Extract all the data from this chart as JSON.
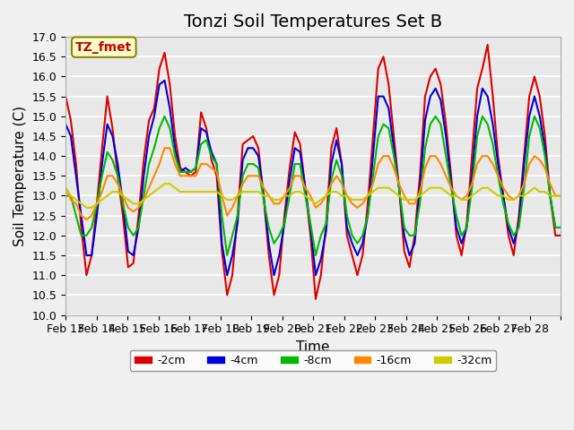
{
  "title": "Tonzi Soil Temperatures Set B",
  "xlabel": "Time",
  "ylabel": "Soil Temperature (C)",
  "ylim": [
    10.0,
    17.0
  ],
  "yticks": [
    10.0,
    10.5,
    11.0,
    11.5,
    12.0,
    12.5,
    13.0,
    13.5,
    14.0,
    14.5,
    15.0,
    15.5,
    16.0,
    16.5,
    17.0
  ],
  "xtick_labels": [
    "Feb 13",
    "Feb 14",
    "Feb 15",
    "Feb 16",
    "Feb 17",
    "Feb 18",
    "Feb 19",
    "Feb 20",
    "Feb 21",
    "Feb 22",
    "Feb 23",
    "Feb 24",
    "Feb 25",
    "Feb 26",
    "Feb 27",
    "Feb 28"
  ],
  "series": {
    "-2cm": {
      "color": "#dd0000",
      "linewidth": 1.5
    },
    "-4cm": {
      "color": "#0000dd",
      "linewidth": 1.5
    },
    "-8cm": {
      "color": "#00bb00",
      "linewidth": 1.5
    },
    "-16cm": {
      "color": "#ff8800",
      "linewidth": 1.5
    },
    "-32cm": {
      "color": "#cccc00",
      "linewidth": 1.5
    }
  },
  "legend_label": "TZ_fmet",
  "legend_bg": "#ffffcc",
  "legend_border": "#888800",
  "bg_color": "#e8e8e8",
  "grid_color": "#ffffff",
  "title_fontsize": 14,
  "axis_label_fontsize": 11,
  "tick_fontsize": 9,
  "n_points": 384,
  "days": 16,
  "t2cm": [
    15.5,
    14.9,
    13.8,
    12.2,
    11.0,
    11.5,
    12.8,
    14.2,
    15.5,
    14.7,
    13.5,
    12.5,
    11.2,
    11.3,
    12.5,
    13.9,
    14.9,
    15.2,
    16.2,
    16.6,
    15.8,
    14.5,
    13.7,
    13.6,
    13.5,
    13.6,
    15.1,
    14.7,
    13.9,
    13.5,
    11.6,
    10.5,
    11.0,
    12.5,
    14.3,
    14.4,
    14.5,
    14.2,
    13.0,
    11.5,
    10.5,
    11.0,
    12.5,
    13.7,
    14.6,
    14.3,
    13.2,
    12.0,
    10.4,
    11.0,
    12.3,
    14.2,
    14.7,
    13.8,
    12.0,
    11.5,
    11.0,
    11.5,
    12.8,
    14.5,
    16.2,
    16.5,
    15.8,
    14.5,
    13.2,
    11.6,
    11.2,
    12.0,
    13.5,
    15.5,
    16.0,
    16.2,
    15.8,
    14.8,
    13.5,
    12.0,
    11.5,
    12.3,
    14.0,
    15.7,
    16.2,
    16.8,
    15.5,
    14.0,
    13.0,
    12.0,
    11.5,
    12.5,
    14.0,
    15.5,
    16.0,
    15.5,
    14.5,
    13.0,
    12.0,
    12.0
  ],
  "t4cm": [
    14.8,
    14.5,
    13.5,
    12.5,
    11.5,
    11.5,
    12.5,
    13.8,
    14.8,
    14.5,
    13.8,
    12.8,
    11.6,
    11.5,
    12.2,
    13.5,
    14.5,
    15.0,
    15.8,
    15.9,
    15.2,
    14.2,
    13.6,
    13.7,
    13.6,
    13.7,
    14.7,
    14.6,
    14.1,
    13.8,
    11.8,
    11.0,
    11.5,
    12.3,
    13.9,
    14.2,
    14.2,
    14.0,
    13.0,
    11.8,
    11.0,
    11.5,
    12.3,
    13.4,
    14.2,
    14.1,
    13.2,
    12.2,
    11.0,
    11.4,
    12.1,
    13.8,
    14.4,
    13.8,
    12.2,
    11.8,
    11.5,
    11.8,
    12.5,
    14.0,
    15.5,
    15.5,
    15.2,
    14.2,
    13.2,
    12.0,
    11.5,
    11.8,
    13.2,
    14.9,
    15.5,
    15.7,
    15.4,
    14.5,
    13.3,
    12.2,
    11.8,
    12.2,
    13.5,
    15.0,
    15.7,
    15.5,
    14.8,
    13.8,
    13.0,
    12.2,
    11.8,
    12.3,
    13.8,
    15.0,
    15.5,
    15.0,
    14.2,
    13.0,
    12.2,
    12.2
  ],
  "t8cm": [
    13.0,
    13.0,
    12.5,
    12.0,
    12.0,
    12.2,
    12.8,
    13.5,
    14.1,
    13.9,
    13.5,
    12.8,
    12.2,
    12.0,
    12.2,
    13.0,
    13.8,
    14.2,
    14.7,
    15.0,
    14.7,
    14.0,
    13.6,
    13.6,
    13.6,
    13.7,
    14.3,
    14.4,
    14.0,
    13.8,
    12.5,
    11.5,
    12.0,
    12.5,
    13.5,
    13.8,
    13.8,
    13.7,
    12.9,
    12.2,
    11.8,
    12.0,
    12.3,
    13.0,
    13.8,
    13.8,
    13.0,
    12.3,
    11.5,
    12.0,
    12.3,
    13.4,
    13.9,
    13.5,
    12.5,
    12.0,
    11.8,
    12.0,
    12.5,
    13.5,
    14.5,
    14.8,
    14.7,
    14.0,
    13.2,
    12.2,
    12.0,
    12.0,
    12.8,
    14.2,
    14.8,
    15.0,
    14.8,
    14.0,
    13.2,
    12.5,
    12.0,
    12.2,
    13.2,
    14.5,
    15.0,
    14.8,
    14.3,
    13.5,
    12.8,
    12.3,
    12.0,
    12.2,
    13.2,
    14.5,
    15.0,
    14.7,
    14.0,
    13.0,
    12.2,
    12.2
  ],
  "t16cm": [
    13.2,
    12.9,
    12.8,
    12.5,
    12.4,
    12.5,
    12.8,
    13.1,
    13.5,
    13.5,
    13.3,
    13.0,
    12.7,
    12.6,
    12.7,
    12.9,
    13.2,
    13.5,
    13.8,
    14.2,
    14.2,
    13.8,
    13.5,
    13.5,
    13.5,
    13.5,
    13.8,
    13.8,
    13.7,
    13.6,
    13.0,
    12.5,
    12.7,
    13.0,
    13.3,
    13.5,
    13.5,
    13.5,
    13.2,
    13.0,
    12.8,
    12.8,
    13.0,
    13.2,
    13.5,
    13.5,
    13.2,
    13.0,
    12.7,
    12.8,
    13.0,
    13.3,
    13.5,
    13.3,
    13.0,
    12.8,
    12.7,
    12.8,
    13.0,
    13.3,
    13.8,
    14.0,
    14.0,
    13.7,
    13.3,
    13.0,
    12.8,
    12.8,
    13.1,
    13.7,
    14.0,
    14.0,
    13.8,
    13.5,
    13.2,
    13.0,
    12.9,
    13.0,
    13.3,
    13.8,
    14.0,
    14.0,
    13.8,
    13.5,
    13.2,
    13.0,
    12.9,
    13.0,
    13.3,
    13.8,
    14.0,
    13.9,
    13.7,
    13.3,
    13.0,
    13.0
  ],
  "t32cm": [
    13.2,
    13.0,
    12.9,
    12.8,
    12.7,
    12.7,
    12.8,
    12.9,
    13.0,
    13.1,
    13.1,
    13.0,
    12.9,
    12.8,
    12.8,
    12.9,
    13.0,
    13.1,
    13.2,
    13.3,
    13.3,
    13.2,
    13.1,
    13.1,
    13.1,
    13.1,
    13.1,
    13.1,
    13.1,
    13.1,
    13.0,
    12.9,
    12.9,
    13.0,
    13.1,
    13.1,
    13.1,
    13.1,
    13.0,
    13.0,
    12.9,
    12.9,
    13.0,
    13.0,
    13.1,
    13.1,
    13.0,
    12.9,
    12.8,
    12.9,
    13.0,
    13.1,
    13.1,
    13.0,
    13.0,
    12.9,
    12.9,
    12.9,
    13.0,
    13.1,
    13.2,
    13.2,
    13.2,
    13.1,
    13.0,
    12.9,
    12.9,
    12.9,
    13.0,
    13.1,
    13.2,
    13.2,
    13.2,
    13.1,
    13.0,
    13.0,
    12.9,
    12.9,
    13.0,
    13.1,
    13.2,
    13.2,
    13.1,
    13.0,
    13.0,
    12.9,
    12.9,
    13.0,
    13.0,
    13.1,
    13.2,
    13.1,
    13.1,
    13.0,
    13.0,
    13.0
  ]
}
